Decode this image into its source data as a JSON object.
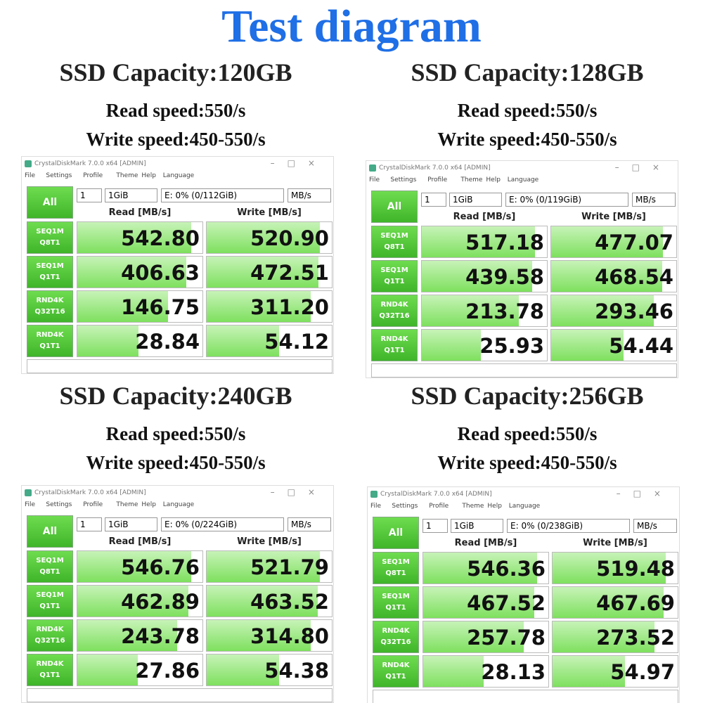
{
  "title": "Test diagram",
  "panels": [
    {
      "capacity": "SSD Capacity:120GB",
      "read": "Read speed:550/s",
      "write": "Write speed:450-550/s",
      "window": {
        "title": "CrystalDiskMark 7.0.0 x64 [ADMIN]",
        "menu": [
          "File",
          "Settings",
          "Profile",
          "Theme",
          "Help",
          "Language"
        ],
        "all": "All",
        "count": "1",
        "size": "1GiB",
        "drive": "E: 0% (0/112GiB)",
        "unit": "MB/s",
        "read_header": "Read [MB/s]",
        "write_header": "Write [MB/s]",
        "rows": [
          {
            "test": [
              "SEQ1M",
              "Q8T1"
            ],
            "read": "542.80",
            "write": "520.90"
          },
          {
            "test": [
              "SEQ1M",
              "Q1T1"
            ],
            "read": "406.63",
            "write": "472.51"
          },
          {
            "test": [
              "RND4K",
              "Q32T16"
            ],
            "read": "146.75",
            "write": "311.20"
          },
          {
            "test": [
              "RND4K",
              "Q1T1"
            ],
            "read": "28.84",
            "write": "54.12"
          }
        ]
      }
    },
    {
      "capacity": "SSD Capacity:128GB",
      "read": "Read speed:550/s",
      "write": "Write speed:450-550/s",
      "window": {
        "title": "CrystalDiskMark 7.0.0 x64 [ADMIN]",
        "menu": [
          "File",
          "Settings",
          "Profile",
          "Theme",
          "Help",
          "Language"
        ],
        "all": "All",
        "count": "1",
        "size": "1GiB",
        "drive": "E: 0% (0/119GiB)",
        "unit": "MB/s",
        "read_header": "Read [MB/s]",
        "write_header": "Write [MB/s]",
        "rows": [
          {
            "test": [
              "SEQ1M",
              "Q8T1"
            ],
            "read": "517.18",
            "write": "477.07"
          },
          {
            "test": [
              "SEQ1M",
              "Q1T1"
            ],
            "read": "439.58",
            "write": "468.54"
          },
          {
            "test": [
              "RND4K",
              "Q32T16"
            ],
            "read": "213.78",
            "write": "293.46"
          },
          {
            "test": [
              "RND4K",
              "Q1T1"
            ],
            "read": "25.93",
            "write": "54.44"
          }
        ]
      }
    },
    {
      "capacity": "SSD Capacity:240GB",
      "read": "Read speed:550/s",
      "write": "Write speed:450-550/s",
      "window": {
        "title": "CrystalDiskMark 7.0.0 x64 [ADMIN]",
        "menu": [
          "File",
          "Settings",
          "Profile",
          "Theme",
          "Help",
          "Language"
        ],
        "all": "All",
        "count": "1",
        "size": "1GiB",
        "drive": "E: 0% (0/224GiB)",
        "unit": "MB/s",
        "read_header": "Read [MB/s]",
        "write_header": "Write [MB/s]",
        "rows": [
          {
            "test": [
              "SEQ1M",
              "Q8T1"
            ],
            "read": "546.76",
            "write": "521.79"
          },
          {
            "test": [
              "SEQ1M",
              "Q1T1"
            ],
            "read": "462.89",
            "write": "463.52"
          },
          {
            "test": [
              "RND4K",
              "Q32T16"
            ],
            "read": "243.78",
            "write": "314.80"
          },
          {
            "test": [
              "RND4K",
              "Q1T1"
            ],
            "read": "27.86",
            "write": "54.38"
          }
        ]
      }
    },
    {
      "capacity": "SSD Capacity:256GB",
      "read": "Read speed:550/s",
      "write": "Write speed:450-550/s",
      "window": {
        "title": "CrystalDiskMark 7.0.0 x64 [ADMIN]",
        "menu": [
          "File",
          "Settings",
          "Profile",
          "Theme",
          "Help",
          "Language"
        ],
        "all": "All",
        "count": "1",
        "size": "1GiB",
        "drive": "E: 0% (0/238GiB)",
        "unit": "MB/s",
        "read_header": "Read [MB/s]",
        "write_header": "Write [MB/s]",
        "rows": [
          {
            "test": [
              "SEQ1M",
              "Q8T1"
            ],
            "read": "546.36",
            "write": "519.48"
          },
          {
            "test": [
              "SEQ1M",
              "Q1T1"
            ],
            "read": "467.52",
            "write": "467.69"
          },
          {
            "test": [
              "RND4K",
              "Q32T16"
            ],
            "read": "257.78",
            "write": "273.52"
          },
          {
            "test": [
              "RND4K",
              "Q1T1"
            ],
            "read": "28.13",
            "write": "54.97"
          }
        ]
      }
    }
  ]
}
